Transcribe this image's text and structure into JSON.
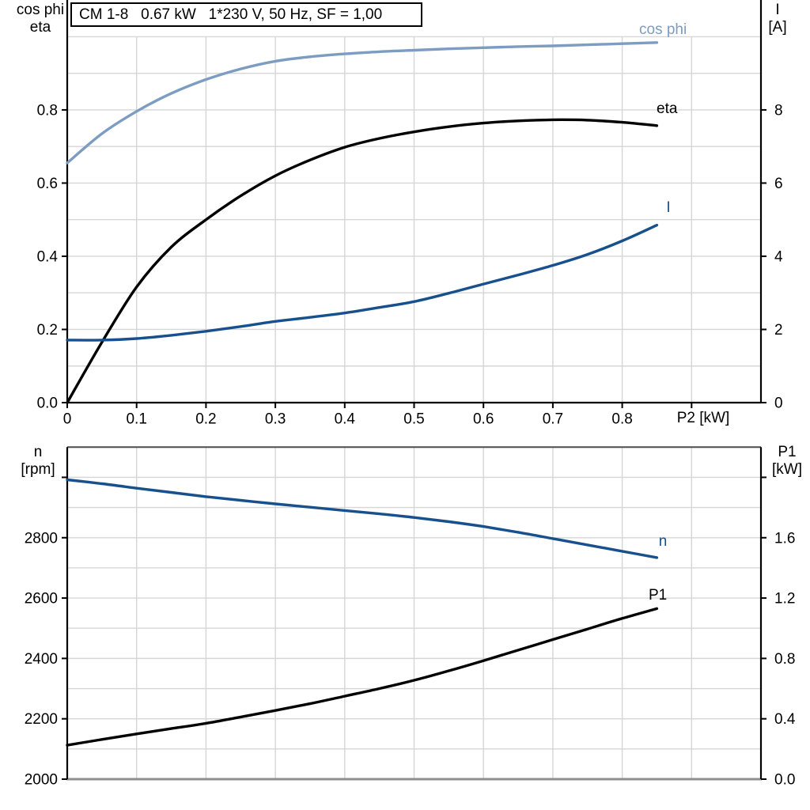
{
  "title_box": "CM 1-8   0.67 kW   1*230 V, 50 Hz, SF = 1,00",
  "colors": {
    "black": "#000000",
    "dark_blue": "#17508d",
    "light_blue": "#7d9cc2",
    "grid": "#d6d6d6",
    "spine_gray_top": "#4d4d4d",
    "spine_gray_bottom": "#8f8f8f"
  },
  "top_plot": {
    "y_left_title_line1": "cos phi",
    "y_left_title_line2": "eta",
    "y_right_title_line1": "I",
    "y_right_title_line2": "[A]",
    "x_title": "P2 [kW]"
  },
  "bottom_plot": {
    "y_left_title_line1": "n",
    "y_left_title_line2": "[rpm]",
    "y_right_title_line1": "P1",
    "y_right_title_line2": "[kW]"
  },
  "chart_data": [
    {
      "type": "line",
      "title": "CM 1-8  0.67 kW  1*230 V, 50 Hz, SF = 1,00",
      "xlabel": "P2 [kW]",
      "ylabel_left": "cos phi / eta",
      "ylabel_right": "I [A]",
      "grid": true,
      "xlim": [
        0,
        1.0
      ],
      "ylim_left": [
        0,
        1.0
      ],
      "ylim_right": [
        0,
        10
      ],
      "x": [
        0,
        0.05,
        0.1,
        0.15,
        0.2,
        0.25,
        0.3,
        0.35,
        0.4,
        0.45,
        0.5,
        0.55,
        0.6,
        0.65,
        0.7,
        0.75,
        0.8,
        0.85
      ],
      "series": [
        {
          "name": "cos phi",
          "axis": "left",
          "color": "light_blue",
          "values": [
            0.655,
            0.735,
            0.796,
            0.845,
            0.883,
            0.912,
            0.933,
            0.945,
            0.953,
            0.959,
            0.963,
            0.967,
            0.97,
            0.973,
            0.975,
            0.978,
            0.981,
            0.984
          ]
        },
        {
          "name": "eta",
          "axis": "left",
          "color": "black",
          "values": [
            0.0,
            0.165,
            0.316,
            0.425,
            0.5,
            0.565,
            0.62,
            0.663,
            0.698,
            0.722,
            0.74,
            0.754,
            0.764,
            0.77,
            0.773,
            0.772,
            0.766,
            0.757
          ]
        },
        {
          "name": "I",
          "axis": "right",
          "color": "dark_blue",
          "values": [
            1.71,
            1.71,
            1.75,
            1.84,
            1.95,
            2.08,
            2.22,
            2.33,
            2.45,
            2.6,
            2.76,
            2.99,
            3.24,
            3.49,
            3.75,
            4.05,
            4.42,
            4.85
          ]
        }
      ],
      "y_left_ticks": {
        "values": [
          0,
          0.2,
          0.4,
          0.6,
          0.8
        ],
        "labels": [
          "0.0",
          "0.2",
          "0.4",
          "0.6",
          "0.8"
        ]
      },
      "y_right_ticks": {
        "values": [
          0,
          2,
          4,
          6,
          8
        ],
        "labels": [
          "0",
          "2",
          "4",
          "6",
          "8"
        ]
      },
      "x_ticks": {
        "values": [
          0,
          0.1,
          0.2,
          0.3,
          0.4,
          0.5,
          0.6,
          0.7,
          0.8,
          0.9
        ],
        "labels": [
          "0",
          "0.1",
          "0.2",
          "0.3",
          "0.4",
          "0.5",
          "0.6",
          "0.7",
          "0.8",
          ""
        ]
      },
      "xgrid": {
        "min": 0.1,
        "max": 0.9,
        "step": 0.1
      },
      "ygrid": {
        "min": 0.1,
        "max": 1.0,
        "step": 0.1
      }
    },
    {
      "type": "line",
      "title": "",
      "xlabel": "",
      "ylabel_left": "n [rpm]",
      "ylabel_right": "P1 [kW]",
      "grid": true,
      "xlim": [
        0,
        1.0
      ],
      "ylim_left": [
        2000,
        3100
      ],
      "ylim_right": [
        0,
        2.2
      ],
      "x": [
        0,
        0.05,
        0.1,
        0.15,
        0.2,
        0.25,
        0.3,
        0.35,
        0.4,
        0.45,
        0.5,
        0.55,
        0.6,
        0.65,
        0.7,
        0.75,
        0.8,
        0.85
      ],
      "series": [
        {
          "name": "n",
          "axis": "left",
          "color": "dark_blue",
          "values": [
            2992,
            2979,
            2964,
            2950,
            2936,
            2924,
            2912,
            2901,
            2890,
            2879,
            2867,
            2853,
            2837,
            2818,
            2797,
            2776,
            2755,
            2734
          ]
        },
        {
          "name": "P1",
          "axis": "right",
          "color": "black",
          "values": [
            0.225,
            0.263,
            0.3,
            0.335,
            0.37,
            0.412,
            0.455,
            0.5,
            0.55,
            0.6,
            0.655,
            0.718,
            0.785,
            0.855,
            0.925,
            0.995,
            1.065,
            1.13
          ]
        }
      ],
      "y_left_ticks": {
        "values": [
          2000,
          2200,
          2400,
          2600,
          2800,
          3000
        ],
        "labels": [
          "2000",
          "2200",
          "2400",
          "2600",
          "2800",
          ""
        ]
      },
      "y_right_ticks": {
        "values": [
          0,
          0.4,
          0.8,
          1.2,
          1.6,
          2.0
        ],
        "labels": [
          "0.0",
          "0.4",
          "0.8",
          "1.2",
          "1.6",
          ""
        ]
      },
      "x_ticks": {
        "values": [],
        "labels": []
      },
      "xgrid": {
        "min": 0.1,
        "max": 0.9,
        "step": 0.1
      },
      "ygrid": {
        "min": 2100,
        "max": 3000,
        "step": 100
      }
    }
  ]
}
